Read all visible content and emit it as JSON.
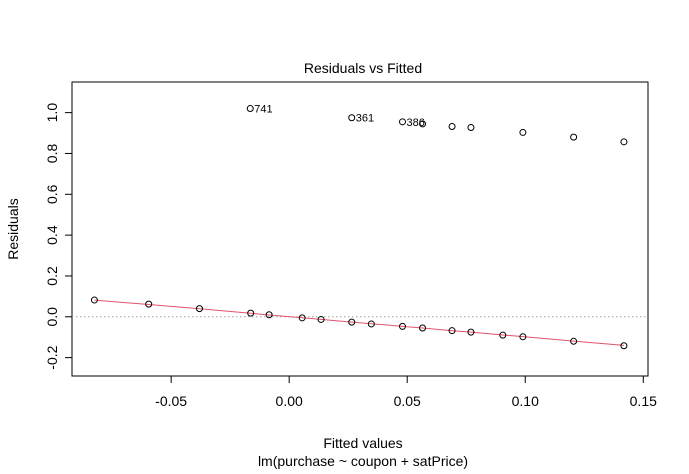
{
  "chart_data": {
    "type": "scatter",
    "title": "Residuals vs Fitted",
    "xlabel": "Fitted values",
    "subtitle": "lm(purchase ~ coupon + satPrice)",
    "ylabel": "Residuals",
    "xlim": [
      -0.092,
      0.152
    ],
    "ylim": [
      -0.29,
      1.15
    ],
    "x_ticks": [
      -0.05,
      0.0,
      0.05,
      0.1,
      0.15
    ],
    "x_tick_labels": [
      "-0.05",
      "0.00",
      "0.05",
      "0.10",
      "0.15"
    ],
    "y_ticks": [
      -0.2,
      0.0,
      0.2,
      0.4,
      0.6,
      0.8,
      1.0
    ],
    "y_tick_labels": [
      "-0.2",
      "0.0",
      "0.2",
      "0.4",
      "0.6",
      "0.8",
      "1.0"
    ],
    "reference_line_y": 0,
    "points": [
      {
        "x": 0.0265,
        "y": 0.975
      },
      {
        "x": -0.0165,
        "y": 1.02
      },
      {
        "x": 0.048,
        "y": 0.955
      },
      {
        "x": 0.0565,
        "y": 0.945
      },
      {
        "x": 0.069,
        "y": 0.932
      },
      {
        "x": 0.077,
        "y": 0.927
      },
      {
        "x": 0.099,
        "y": 0.903
      },
      {
        "x": 0.1205,
        "y": 0.88
      },
      {
        "x": 0.1418,
        "y": 0.857
      },
      {
        "x": -0.0825,
        "y": 0.082
      },
      {
        "x": -0.0595,
        "y": 0.062
      },
      {
        "x": -0.038,
        "y": 0.04
      },
      {
        "x": -0.0163,
        "y": 0.018
      },
      {
        "x": -0.0085,
        "y": 0.01
      },
      {
        "x": 0.0055,
        "y": -0.005
      },
      {
        "x": 0.0135,
        "y": -0.013
      },
      {
        "x": 0.0265,
        "y": -0.026
      },
      {
        "x": 0.0348,
        "y": -0.035
      },
      {
        "x": 0.048,
        "y": -0.047
      },
      {
        "x": 0.0565,
        "y": -0.055
      },
      {
        "x": 0.069,
        "y": -0.068
      },
      {
        "x": 0.077,
        "y": -0.075
      },
      {
        "x": 0.0905,
        "y": -0.09
      },
      {
        "x": 0.099,
        "y": -0.098
      },
      {
        "x": 0.1205,
        "y": -0.12
      },
      {
        "x": 0.1418,
        "y": -0.142
      }
    ],
    "point_labels": [
      {
        "text": "741",
        "x": -0.0165,
        "y": 1.02
      },
      {
        "text": "361",
        "x": 0.0265,
        "y": 0.975
      },
      {
        "text": "386",
        "x": 0.048,
        "y": 0.955
      }
    ],
    "smooth_line": {
      "color": "#df536b",
      "x": [
        -0.0825,
        -0.0595,
        -0.038,
        -0.0163,
        -0.0085,
        0.0055,
        0.0135,
        0.0265,
        0.0348,
        0.048,
        0.0565,
        0.069,
        0.077,
        0.0905,
        0.099,
        0.1205,
        0.1418
      ],
      "y": [
        0.082,
        0.06,
        0.039,
        0.017,
        0.009,
        -0.005,
        -0.013,
        -0.026,
        -0.034,
        -0.047,
        -0.055,
        -0.068,
        -0.075,
        -0.089,
        -0.097,
        -0.119,
        -0.14
      ]
    },
    "reference_line_color": "#a0a0a0"
  }
}
